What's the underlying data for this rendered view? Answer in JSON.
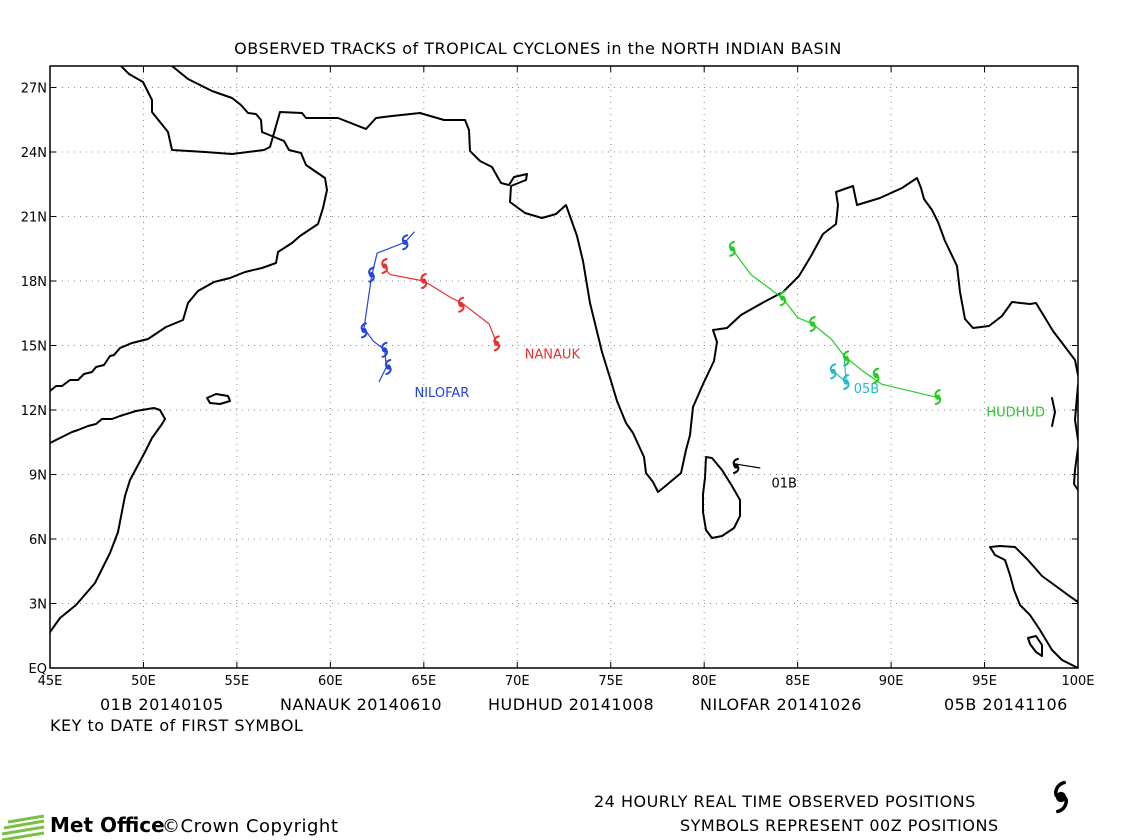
{
  "title": "OBSERVED TRACKS of TROPICAL CYCLONES in the NORTH INDIAN BASIN",
  "axes": {
    "lon_min": 45,
    "lon_max": 100,
    "lat_min": 0,
    "lat_max": 28,
    "x_ticks": [
      "45E",
      "50E",
      "55E",
      "60E",
      "65E",
      "70E",
      "75E",
      "80E",
      "85E",
      "90E",
      "95E",
      "100E"
    ],
    "y_ticks": [
      "EQ",
      "3N",
      "6N",
      "9N",
      "12N",
      "15N",
      "18N",
      "21N",
      "24N",
      "27N"
    ],
    "grid": true
  },
  "key": {
    "entries": [
      "01B 20140105",
      "NANAUK 20140610",
      "HUDHUD 20141008",
      "NILOFAR 20141026",
      "05B 20141106"
    ],
    "caption": "KEY to DATE of FIRST SYMBOL"
  },
  "footer": {
    "line1": "24 HOURLY REAL TIME OBSERVED POSITIONS",
    "line2": "SYMBOLS REPRESENT 00Z POSITIONS",
    "logo": "Met Office",
    "copyright": "©Crown Copyright"
  },
  "storms": [
    {
      "name": "01B",
      "color": "#000000",
      "track": [
        [
          83.0,
          9.3
        ],
        [
          81.6,
          9.5
        ]
      ],
      "symbols": [
        [
          81.7,
          9.4
        ]
      ],
      "label_pos": [
        83.6,
        8.4
      ]
    },
    {
      "name": "NANAUK",
      "color": "#e83030",
      "track": [
        [
          63.0,
          18.5
        ],
        [
          63.2,
          18.3
        ],
        [
          65.0,
          18.0
        ],
        [
          66.5,
          17.2
        ],
        [
          67.0,
          17.0
        ],
        [
          68.5,
          16.0
        ],
        [
          68.9,
          15.1
        ]
      ],
      "symbols": [
        [
          62.9,
          18.7
        ],
        [
          65.0,
          18.0
        ],
        [
          67.0,
          16.9
        ],
        [
          68.9,
          15.1
        ]
      ],
      "label_pos": [
        70.4,
        14.4
      ]
    },
    {
      "name": "HUDHUD",
      "color": "#22cc22",
      "track": [
        [
          81.4,
          19.6
        ],
        [
          82.5,
          18.3
        ],
        [
          84.2,
          17.2
        ],
        [
          85.0,
          16.3
        ],
        [
          85.8,
          16.0
        ],
        [
          86.8,
          15.3
        ],
        [
          87.5,
          14.5
        ],
        [
          88.5,
          13.8
        ],
        [
          89.5,
          13.2
        ],
        [
          92.4,
          12.6
        ]
      ],
      "symbols": [
        [
          81.5,
          19.5
        ],
        [
          84.2,
          17.2
        ],
        [
          85.8,
          16.0
        ],
        [
          87.6,
          14.4
        ],
        [
          89.2,
          13.6
        ],
        [
          92.5,
          12.6
        ]
      ],
      "label_pos": [
        95.1,
        11.7
      ]
    },
    {
      "name": "NILOFAR",
      "color": "#2244dd",
      "track": [
        [
          64.5,
          20.3
        ],
        [
          64.0,
          19.8
        ],
        [
          62.5,
          19.3
        ],
        [
          62.2,
          18.2
        ],
        [
          61.8,
          15.8
        ],
        [
          62.3,
          15.2
        ],
        [
          62.9,
          14.8
        ],
        [
          63.0,
          14.0
        ],
        [
          62.6,
          13.3
        ]
      ],
      "symbols": [
        [
          64.0,
          19.8
        ],
        [
          62.2,
          18.3
        ],
        [
          61.8,
          15.7
        ],
        [
          62.9,
          14.8
        ],
        [
          63.1,
          14.0
        ]
      ],
      "label_pos": [
        64.5,
        12.6
      ]
    },
    {
      "name": "05B",
      "color": "#22bbcc",
      "track": [
        [
          86.9,
          13.8
        ],
        [
          87.6,
          13.3
        ],
        [
          87.5,
          14.3
        ]
      ],
      "symbols": [
        [
          86.9,
          13.8
        ],
        [
          87.6,
          13.3
        ]
      ],
      "label_pos": [
        88.0,
        12.8
      ]
    }
  ]
}
